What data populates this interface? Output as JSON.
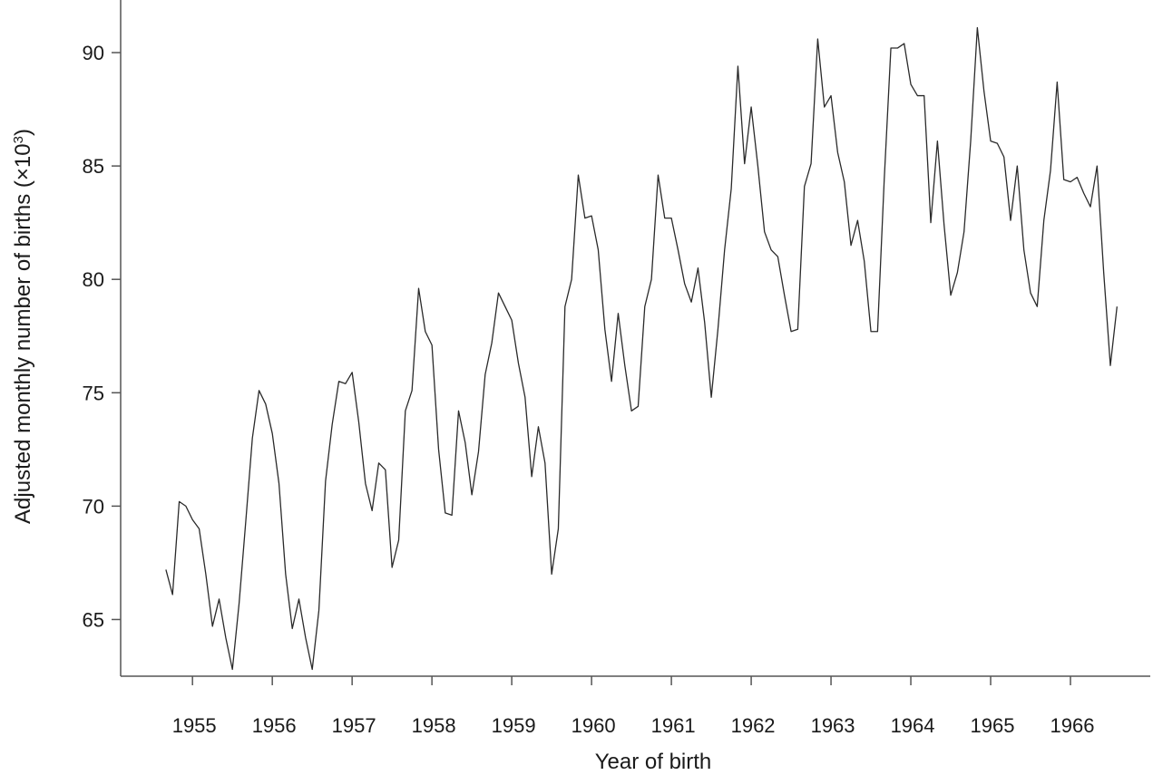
{
  "chart_data": {
    "type": "line",
    "title": "",
    "xlabel": "Year of birth",
    "ylabel": "Adjusted monthly number of births (×10³)",
    "ylabel_base": "Adjusted monthly number of births (×10",
    "ylabel_exponent": "3",
    "ylabel_close": ")",
    "x_start": 1954.667,
    "x_step": 0.08333,
    "xlim": [
      1954.1,
      1967.0
    ],
    "ylim": [
      62.5,
      92.0
    ],
    "xticks": [
      1955,
      1956,
      1957,
      1958,
      1959,
      1960,
      1961,
      1962,
      1963,
      1964,
      1965,
      1966
    ],
    "xtick_labels": [
      "1955",
      "1956",
      "1957",
      "1958",
      "1959",
      "1960",
      "1961",
      "1962",
      "1963",
      "1964",
      "1965",
      "1966"
    ],
    "yticks": [
      65,
      70,
      75,
      80,
      85,
      90
    ],
    "ytick_labels": [
      "65",
      "70",
      "75",
      "80",
      "85",
      "90"
    ],
    "grid": false,
    "series": [
      {
        "values": [
          67.2,
          66.1,
          70.2,
          70.0,
          69.4,
          69.0,
          67.0,
          64.7,
          65.9,
          64.2,
          62.8,
          65.7,
          69.3,
          73.0,
          75.1,
          74.5,
          73.2,
          71.0,
          67.0,
          64.6,
          65.9,
          64.2,
          62.8,
          65.4,
          71.1,
          73.6,
          75.5,
          75.4,
          75.9,
          73.7,
          71.0,
          69.8,
          71.9,
          71.6,
          67.3,
          68.5,
          74.2,
          75.1,
          79.6,
          77.7,
          77.1,
          72.5,
          69.7,
          69.6,
          74.2,
          72.8,
          70.5,
          72.4,
          75.8,
          77.2,
          79.4,
          78.8,
          78.2,
          76.3,
          74.8,
          71.3,
          73.5,
          71.9,
          67.0,
          69.0,
          78.8,
          80.0,
          84.6,
          82.7,
          82.8,
          81.3,
          77.8,
          75.5,
          78.5,
          76.2,
          74.2,
          74.4,
          78.8,
          80.0,
          84.6,
          82.7,
          82.7,
          81.3,
          79.8,
          79.0,
          80.5,
          78.1,
          74.8,
          77.8,
          81.3,
          84.0,
          89.4,
          85.1,
          87.6,
          85.0,
          82.1,
          81.3,
          81.0,
          79.3,
          77.7,
          77.8,
          84.1,
          85.1,
          90.6,
          87.6,
          88.1,
          85.6,
          84.3,
          81.5,
          82.6,
          80.8,
          77.7,
          77.7,
          84.4,
          90.2,
          90.2,
          90.4,
          88.6,
          88.1,
          88.1,
          82.5,
          86.1,
          82.4,
          79.3,
          80.3,
          82.1,
          86.1,
          91.1,
          88.3,
          86.1,
          86.0,
          85.4,
          82.6,
          85.0,
          81.3,
          79.4,
          78.8,
          82.6,
          84.8,
          88.7,
          84.4,
          84.3,
          84.5,
          83.8,
          83.2,
          85.0,
          80.3,
          76.2,
          78.8
        ]
      }
    ]
  }
}
